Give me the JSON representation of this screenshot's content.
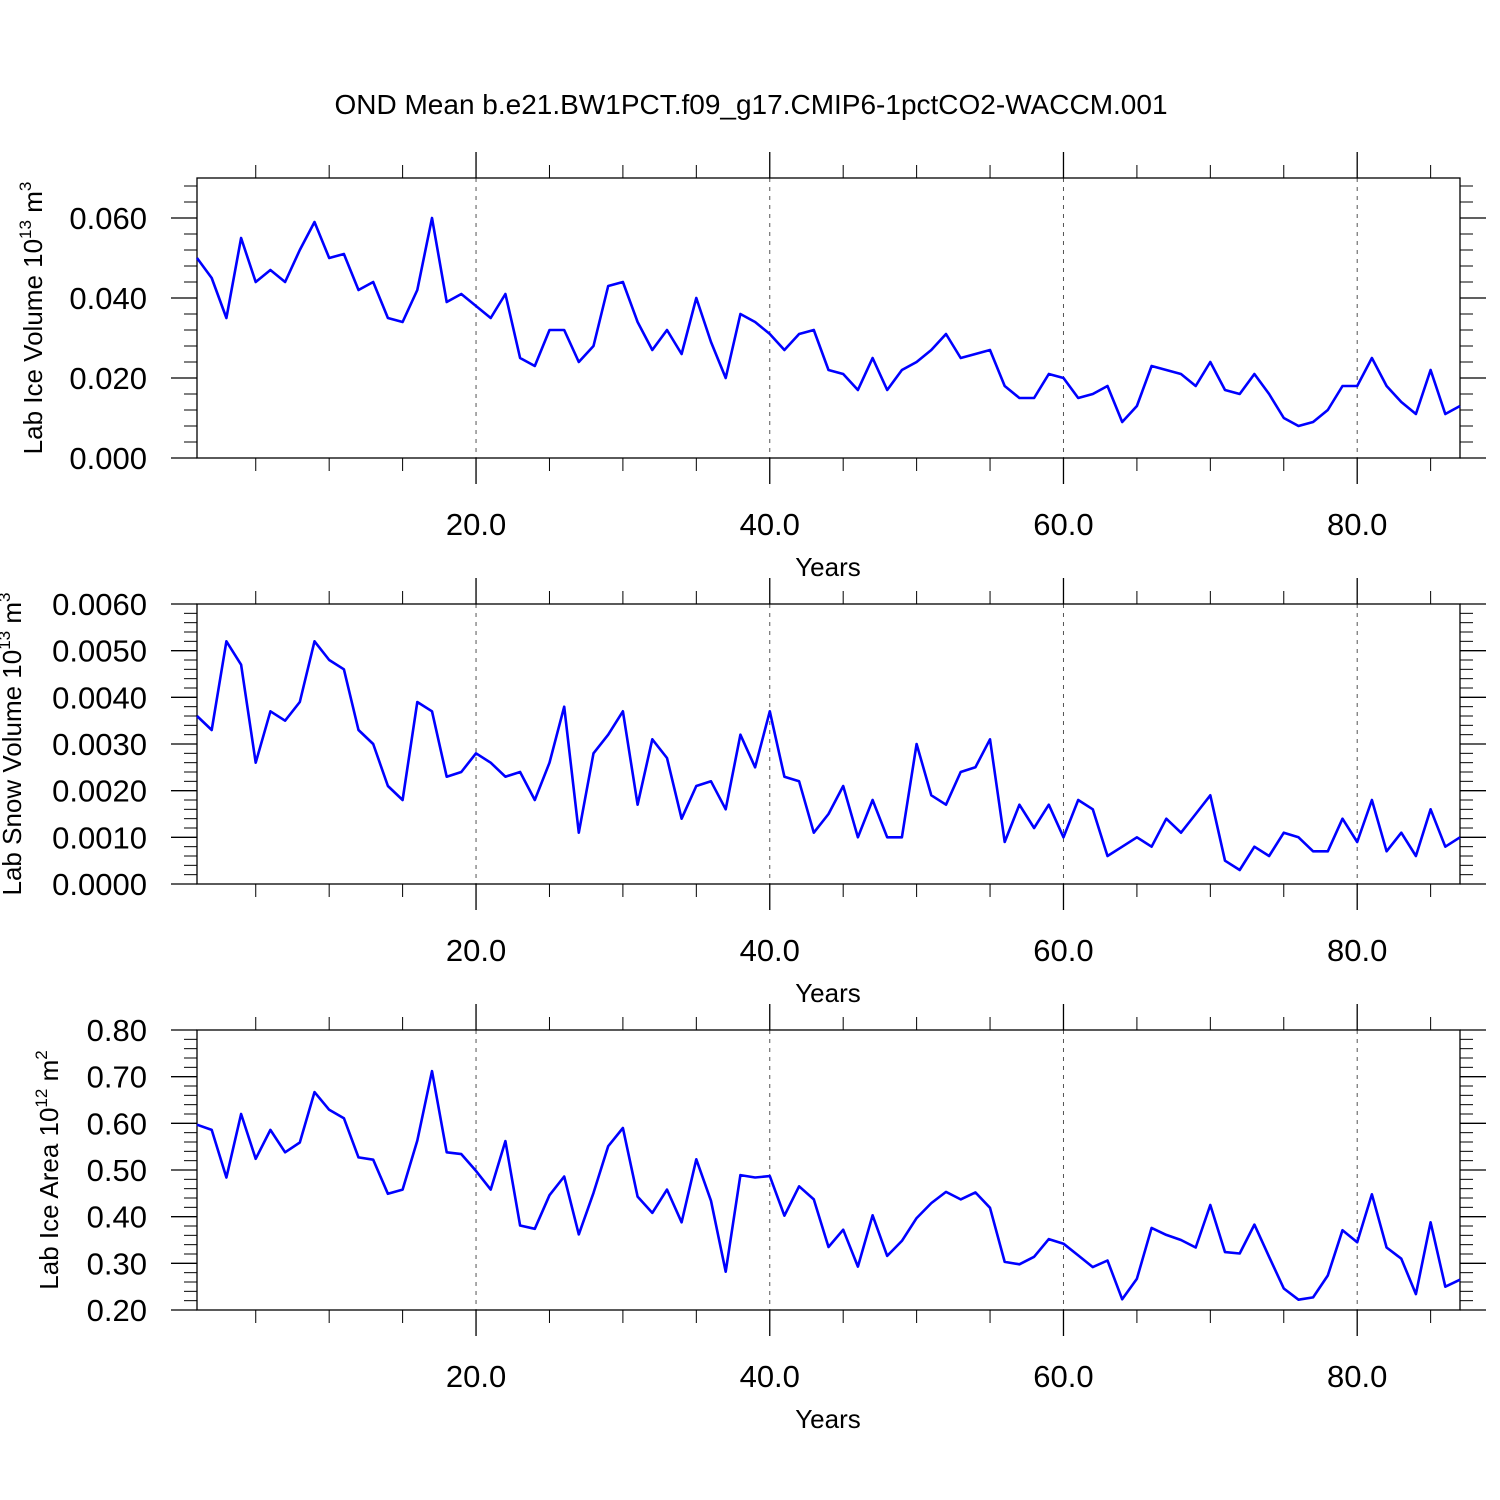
{
  "figure": {
    "title": "OND Mean b.e21.BW1PCT.f09_g17.CMIP6-1pctCO2-WACCM.001"
  },
  "style": {
    "line_color": "#0000ff",
    "grid_color": "#555555",
    "axis_color": "#000000"
  },
  "chart_data": [
    {
      "type": "line",
      "xlabel": "Years",
      "ylabel": {
        "text": "Lab Ice Volume 10",
        "sup": "13",
        "unit": " m",
        "unit_sup": "3"
      },
      "xlim": [
        1,
        87
      ],
      "ylim": [
        0,
        0.07
      ],
      "xticks": [
        20,
        40,
        60,
        80
      ],
      "xtick_labels": [
        "20.0",
        "40.0",
        "60.0",
        "80.0"
      ],
      "yticks": [
        0,
        0.02,
        0.04,
        0.06
      ],
      "ytick_labels": [
        "0.000",
        "0.020",
        "0.040",
        "0.060"
      ],
      "grid": "vertical-dashed",
      "x": [
        1,
        2,
        3,
        4,
        5,
        6,
        7,
        8,
        9,
        10,
        11,
        12,
        13,
        14,
        15,
        16,
        17,
        18,
        19,
        20,
        21,
        22,
        23,
        24,
        25,
        26,
        27,
        28,
        29,
        30,
        31,
        32,
        33,
        34,
        35,
        36,
        37,
        38,
        39,
        40,
        41,
        42,
        43,
        44,
        45,
        46,
        47,
        48,
        49,
        50,
        51,
        52,
        53,
        54,
        55,
        56,
        57,
        58,
        59,
        60,
        61,
        62,
        63,
        64,
        65,
        66,
        67,
        68,
        69,
        70,
        71,
        72,
        73,
        74,
        75,
        76,
        77,
        78,
        79,
        80,
        81,
        82,
        83,
        84,
        85,
        86,
        87
      ],
      "values": [
        0.05,
        0.045,
        0.035,
        0.055,
        0.044,
        0.047,
        0.044,
        0.052,
        0.059,
        0.05,
        0.051,
        0.042,
        0.044,
        0.035,
        0.034,
        0.042,
        0.06,
        0.039,
        0.041,
        0.038,
        0.035,
        0.041,
        0.025,
        0.023,
        0.032,
        0.032,
        0.024,
        0.028,
        0.043,
        0.044,
        0.034,
        0.027,
        0.032,
        0.026,
        0.04,
        0.029,
        0.02,
        0.036,
        0.034,
        0.031,
        0.027,
        0.031,
        0.032,
        0.022,
        0.021,
        0.017,
        0.025,
        0.017,
        0.022,
        0.024,
        0.027,
        0.031,
        0.025,
        0.026,
        0.027,
        0.018,
        0.015,
        0.015,
        0.021,
        0.02,
        0.015,
        0.016,
        0.018,
        0.009,
        0.013,
        0.023,
        0.022,
        0.021,
        0.018,
        0.024,
        0.017,
        0.016,
        0.021,
        0.016,
        0.01,
        0.008,
        0.009,
        0.012,
        0.018,
        0.018,
        0.025,
        0.018,
        0.014,
        0.011,
        0.022,
        0.011,
        0.013
      ]
    },
    {
      "type": "line",
      "xlabel": "Years",
      "ylabel": {
        "text": "Lab Snow Volume 10",
        "sup": "13",
        "unit": " m",
        "unit_sup": "3"
      },
      "xlim": [
        1,
        87
      ],
      "ylim": [
        0,
        0.006
      ],
      "xticks": [
        20,
        40,
        60,
        80
      ],
      "xtick_labels": [
        "20.0",
        "40.0",
        "60.0",
        "80.0"
      ],
      "yticks": [
        0,
        0.001,
        0.002,
        0.003,
        0.004,
        0.005,
        0.006
      ],
      "ytick_labels": [
        "0.0000",
        "0.0010",
        "0.0020",
        "0.0030",
        "0.0040",
        "0.0050",
        "0.0060"
      ],
      "grid": "vertical-dashed",
      "x": [
        1,
        2,
        3,
        4,
        5,
        6,
        7,
        8,
        9,
        10,
        11,
        12,
        13,
        14,
        15,
        16,
        17,
        18,
        19,
        20,
        21,
        22,
        23,
        24,
        25,
        26,
        27,
        28,
        29,
        30,
        31,
        32,
        33,
        34,
        35,
        36,
        37,
        38,
        39,
        40,
        41,
        42,
        43,
        44,
        45,
        46,
        47,
        48,
        49,
        50,
        51,
        52,
        53,
        54,
        55,
        56,
        57,
        58,
        59,
        60,
        61,
        62,
        63,
        64,
        65,
        66,
        67,
        68,
        69,
        70,
        71,
        72,
        73,
        74,
        75,
        76,
        77,
        78,
        79,
        80,
        81,
        82,
        83,
        84,
        85,
        86,
        87
      ],
      "values": [
        0.0036,
        0.0033,
        0.0052,
        0.0047,
        0.0026,
        0.0037,
        0.0035,
        0.0039,
        0.0052,
        0.0048,
        0.0046,
        0.0033,
        0.003,
        0.0021,
        0.0018,
        0.0039,
        0.0037,
        0.0023,
        0.0024,
        0.0028,
        0.0026,
        0.0023,
        0.0024,
        0.0018,
        0.0026,
        0.0038,
        0.0011,
        0.0028,
        0.0032,
        0.0037,
        0.0017,
        0.0031,
        0.0027,
        0.0014,
        0.0021,
        0.0022,
        0.0016,
        0.0032,
        0.0025,
        0.0037,
        0.0023,
        0.0022,
        0.0011,
        0.0015,
        0.0021,
        0.001,
        0.0018,
        0.001,
        0.001,
        0.003,
        0.0019,
        0.0017,
        0.0024,
        0.0025,
        0.0031,
        0.0009,
        0.0017,
        0.0012,
        0.0017,
        0.001,
        0.0018,
        0.0016,
        0.0006,
        0.0008,
        0.001,
        0.0008,
        0.0014,
        0.0011,
        0.0015,
        0.0019,
        0.0005,
        0.0003,
        0.0008,
        0.0006,
        0.0011,
        0.001,
        0.0007,
        0.0007,
        0.0014,
        0.0009,
        0.0018,
        0.0007,
        0.0011,
        0.0006,
        0.0016,
        0.0008,
        0.001
      ]
    },
    {
      "type": "line",
      "xlabel": "Years",
      "ylabel": {
        "text": "Lab Ice Area 10",
        "sup": "12",
        "unit": " m",
        "unit_sup": "2"
      },
      "xlim": [
        1,
        87
      ],
      "ylim": [
        0.2,
        0.8
      ],
      "xticks": [
        20,
        40,
        60,
        80
      ],
      "xtick_labels": [
        "20.0",
        "40.0",
        "60.0",
        "80.0"
      ],
      "yticks": [
        0.2,
        0.3,
        0.4,
        0.5,
        0.6,
        0.7,
        0.8
      ],
      "ytick_labels": [
        "0.20",
        "0.30",
        "0.40",
        "0.50",
        "0.60",
        "0.70",
        "0.80"
      ],
      "grid": "vertical-dashed",
      "x": [
        1,
        2,
        3,
        4,
        5,
        6,
        7,
        8,
        9,
        10,
        11,
        12,
        13,
        14,
        15,
        16,
        17,
        18,
        19,
        20,
        21,
        22,
        23,
        24,
        25,
        26,
        27,
        28,
        29,
        30,
        31,
        32,
        33,
        34,
        35,
        36,
        37,
        38,
        39,
        40,
        41,
        42,
        43,
        44,
        45,
        46,
        47,
        48,
        49,
        50,
        51,
        52,
        53,
        54,
        55,
        56,
        57,
        58,
        59,
        60,
        61,
        62,
        63,
        64,
        65,
        66,
        67,
        68,
        69,
        70,
        71,
        72,
        73,
        74,
        75,
        76,
        77,
        78,
        79,
        80,
        81,
        82,
        83,
        84,
        85,
        86,
        87
      ],
      "values": [
        0.597,
        0.586,
        0.484,
        0.62,
        0.524,
        0.586,
        0.538,
        0.559,
        0.667,
        0.629,
        0.611,
        0.527,
        0.522,
        0.449,
        0.458,
        0.563,
        0.712,
        0.538,
        0.534,
        0.498,
        0.458,
        0.562,
        0.381,
        0.374,
        0.446,
        0.486,
        0.362,
        0.451,
        0.551,
        0.59,
        0.443,
        0.408,
        0.458,
        0.388,
        0.523,
        0.434,
        0.282,
        0.489,
        0.484,
        0.487,
        0.402,
        0.465,
        0.437,
        0.335,
        0.372,
        0.293,
        0.403,
        0.316,
        0.348,
        0.397,
        0.429,
        0.453,
        0.437,
        0.452,
        0.419,
        0.303,
        0.298,
        0.314,
        0.352,
        0.342,
        0.317,
        0.292,
        0.306,
        0.223,
        0.267,
        0.376,
        0.361,
        0.35,
        0.334,
        0.425,
        0.324,
        0.321,
        0.383,
        0.314,
        0.246,
        0.222,
        0.227,
        0.274,
        0.371,
        0.345,
        0.448,
        0.334,
        0.31,
        0.234,
        0.388,
        0.25,
        0.265
      ]
    }
  ]
}
